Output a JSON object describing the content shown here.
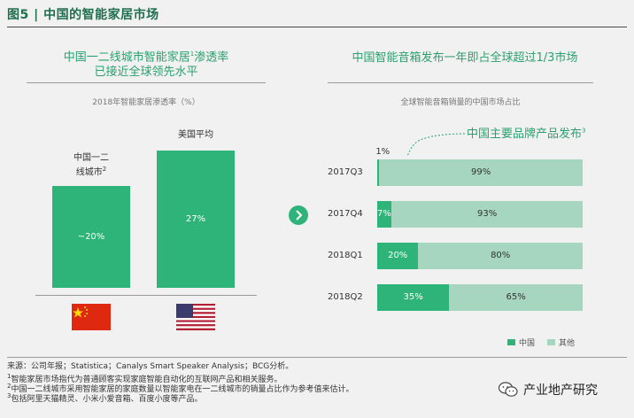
{
  "figure_title": "图5 | 中国的智能家居市场",
  "left_panel": {
    "title_line1_a": "中国一二线城市智能家居",
    "title_line1_sup": "1",
    "title_line1_b": "渗透率",
    "title_line2": "已接近全球领先水平",
    "subtitle": "2018年智能家居渗透率（%）"
  },
  "right_panel": {
    "title": "中国智能音箱发布一年即占全球超过1/3市场",
    "subtitle": "全球智能音箱销量的中国市场占比",
    "annotation": "中国主要品牌产品发布",
    "annotation_sup": "3"
  },
  "colors": {
    "china": "#2eb378",
    "other": "#a6d6bf",
    "accent": "#2aa070",
    "flag_cn": "#de2910",
    "flag_us_red": "#b22234",
    "flag_us_blue": "#3c3b6e"
  },
  "chart_data": [
    {
      "type": "bar",
      "title": "2018年智能家居渗透率（%）",
      "categories": [
        "中国一二线城市",
        "美国平均"
      ],
      "category_sups": [
        "2",
        ""
      ],
      "values": [
        20,
        27
      ],
      "value_labels": [
        "~20%",
        "27%"
      ],
      "icons": [
        "china-flag-icon",
        "usa-flag-icon"
      ],
      "ylim": [
        0,
        35
      ]
    },
    {
      "type": "bar",
      "orientation": "horizontal",
      "stacked": true,
      "title": "全球智能音箱销量的中国市场占比",
      "categories": [
        "2017Q3",
        "2017Q4",
        "2018Q1",
        "2018Q2"
      ],
      "series": [
        {
          "name": "中国",
          "values": [
            1,
            7,
            20,
            35
          ],
          "labels": [
            "1%",
            "7%",
            "20%",
            "35%"
          ]
        },
        {
          "name": "其他",
          "values": [
            99,
            93,
            80,
            65
          ],
          "labels": [
            "99%",
            "93%",
            "80%",
            "65%"
          ]
        }
      ],
      "xlim": [
        0,
        100
      ],
      "legend": "bottom-right"
    }
  ],
  "footer": {
    "source": "来源：公司年报；Statistica；Canalys Smart Speaker Analysis；BCG分析。",
    "note1": "智能家居市场指代为普通顾客实现家庭智能自动化的互联网产品和相关服务。",
    "note2": "中国一二线城市采用智能家居的家庭数量以智能家电在一二线城市的销量占比作为参考值来估计。",
    "note3": "包括阿里天猫精灵、小米小爱音箱、百度小度等产品。",
    "sup1": "1",
    "sup2": "2",
    "sup3": "3"
  },
  "watermark": "产业地产研究"
}
